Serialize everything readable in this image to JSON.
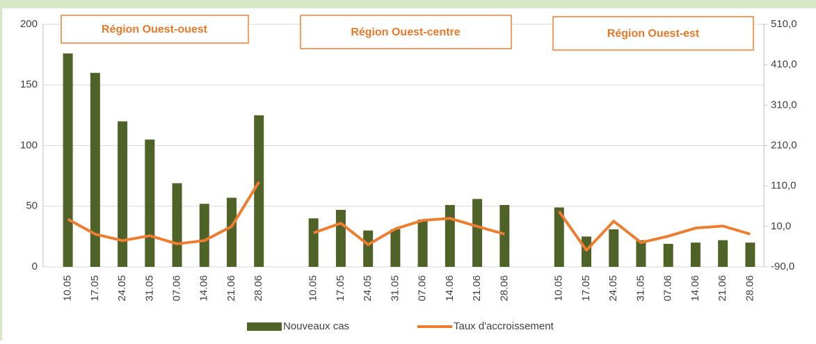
{
  "chart_data": {
    "type": "bar",
    "annotations": [
      "Région Ouest-ouest",
      "Région Ouest-centre",
      "Région Ouest-est"
    ],
    "categories": [
      "10.05",
      "17.05",
      "24.05",
      "31.05",
      "07.06",
      "14.06",
      "21.06",
      "28.06",
      null,
      "10.05",
      "17.05",
      "24.05",
      "31.05",
      "07.06",
      "14.06",
      "21.06",
      "28.06",
      null,
      "10.05",
      "17.05",
      "24.05",
      "31.05",
      "07.06",
      "14.06",
      "21.06",
      "28.06"
    ],
    "series": [
      {
        "name": "Nouveaux cas",
        "type": "bar",
        "color": "#4f6228",
        "values": [
          176,
          160,
          120,
          105,
          69,
          52,
          57,
          125,
          null,
          40,
          47,
          30,
          31,
          39,
          51,
          56,
          51,
          null,
          49,
          25,
          31,
          22,
          19,
          20,
          22,
          20
        ]
      },
      {
        "name": "Taux d'accroissement",
        "type": "line",
        "axis": "y2",
        "color": "#ed7d31",
        "values": [
          28,
          -9,
          -25,
          -13,
          -33,
          -25,
          10,
          120,
          null,
          -6,
          18,
          -35,
          4,
          25,
          30,
          10,
          -9,
          null,
          47,
          -49,
          23,
          -30,
          -14,
          6,
          11,
          -9
        ]
      }
    ],
    "ylim": [
      0,
      200
    ],
    "yticks": [
      0,
      50,
      100,
      150,
      200
    ],
    "y2lim": [
      -90,
      510
    ],
    "y2ticks": [
      {
        "value": -90,
        "label": "-90,0"
      },
      {
        "value": 10,
        "label": "10,0"
      },
      {
        "value": 110,
        "label": "110,0"
      },
      {
        "value": 210,
        "label": "210,0"
      },
      {
        "value": 310,
        "label": "310,0"
      },
      {
        "value": 410,
        "label": "410,0"
      },
      {
        "value": 510,
        "label": "510,0"
      }
    ],
    "grid": true,
    "legend": "bottom"
  }
}
